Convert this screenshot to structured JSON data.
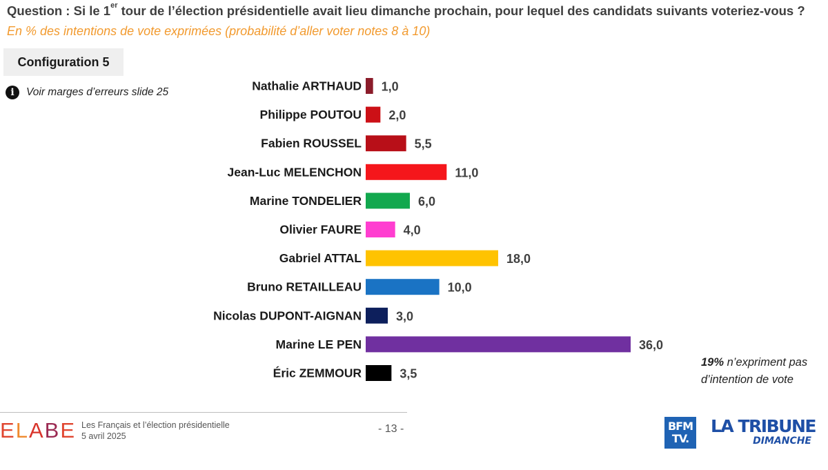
{
  "header": {
    "question_prefix": "Question : Si le 1",
    "question_sup": "er",
    "question_suffix": " tour de l’élection présidentielle avait lieu dimanche prochain, pour lequel des candidats suivants voteriez-vous ?",
    "subtitle": "En % des intentions de vote exprimées (probabilité d’aller voter notes 8 à 10)"
  },
  "config_label": "Configuration 5",
  "info": {
    "icon": "info-icon",
    "text": "Voir marges d’erreurs slide 25"
  },
  "chart_data": {
    "type": "bar",
    "orientation": "horizontal",
    "categories": [
      "Nathalie ARTHAUD",
      "Philippe POUTOU",
      "Fabien ROUSSEL",
      "Jean-Luc MELENCHON",
      "Marine TONDELIER",
      "Olivier FAURE",
      "Gabriel ATTAL",
      "Bruno RETAILLEAU",
      "Nicolas DUPONT-AIGNAN",
      "Marine LE PEN",
      "Éric ZEMMOUR"
    ],
    "values": [
      1.0,
      2.0,
      5.5,
      11.0,
      6.0,
      4.0,
      18.0,
      10.0,
      3.0,
      36.0,
      3.5
    ],
    "value_labels": [
      "1,0",
      "2,0",
      "5,5",
      "11,0",
      "6,0",
      "4,0",
      "18,0",
      "10,0",
      "3,0",
      "36,0",
      "3,5"
    ],
    "colors": [
      "#8b1c2a",
      "#cc1016",
      "#b80f18",
      "#f5161b",
      "#12a84e",
      "#ff3ed0",
      "#ffc300",
      "#1a73c4",
      "#0d1f5c",
      "#7030a0",
      "#000000"
    ],
    "xlim": [
      0,
      36
    ],
    "grid": false,
    "legend": "none"
  },
  "note": {
    "bold": "19%",
    "rest": " n’expriment pas d’intention de vote"
  },
  "footer": {
    "brand_letters": [
      "E",
      "L",
      "A",
      "B",
      "E"
    ],
    "survey_title": "Les Français et l’élection présidentielle",
    "survey_date": "5 avril 2025",
    "page_number": "- 13 -",
    "partner1": [
      "BFM",
      "TV."
    ],
    "partner2_line1": "LA TRIBUNE",
    "partner2_line2": "DIMANCHE"
  }
}
